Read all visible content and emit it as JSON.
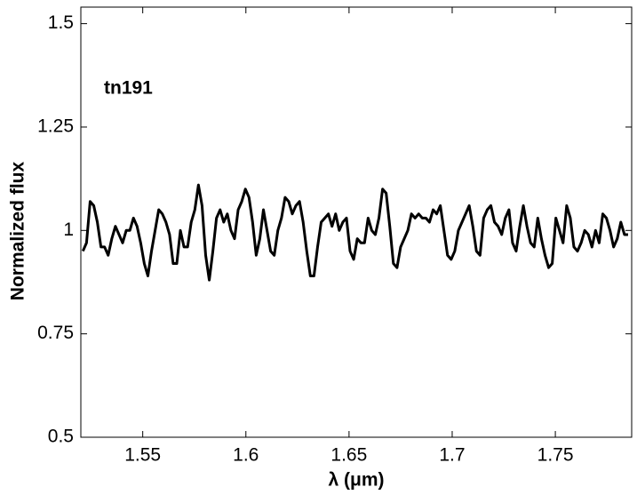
{
  "chart_data": {
    "type": "line",
    "annotation": "tn191",
    "xlabel": "λ (μm)",
    "ylabel": "Normalized flux",
    "xlim": [
      1.52,
      1.787
    ],
    "ylim": [
      0.5,
      1.54
    ],
    "xticks": [
      1.55,
      1.6,
      1.65,
      1.7,
      1.75
    ],
    "yticks": [
      0.5,
      0.75,
      1,
      1.25,
      1.5
    ],
    "grid": false,
    "series": [
      {
        "color": "#000000",
        "x": [
          1.521,
          1.52275,
          1.5245,
          1.52625,
          1.528,
          1.52975,
          1.5315,
          1.53325,
          1.535,
          1.53675,
          1.5385,
          1.54025,
          1.542,
          1.54375,
          1.5455,
          1.54725,
          1.549,
          1.55075,
          1.5525,
          1.55425,
          1.556,
          1.55775,
          1.5595,
          1.56125,
          1.563,
          1.56475,
          1.5665,
          1.56825,
          1.57,
          1.57175,
          1.5735,
          1.57525,
          1.577,
          1.57875,
          1.5805,
          1.58225,
          1.584,
          1.58575,
          1.5875,
          1.58925,
          1.591,
          1.59275,
          1.5945,
          1.59625,
          1.598,
          1.59975,
          1.6015,
          1.60325,
          1.605,
          1.60675,
          1.6085,
          1.61025,
          1.612,
          1.61375,
          1.6155,
          1.61725,
          1.619,
          1.62075,
          1.6225,
          1.62425,
          1.626,
          1.62775,
          1.6295,
          1.63125,
          1.633,
          1.63475,
          1.6365,
          1.63825,
          1.64,
          1.64175,
          1.6435,
          1.64525,
          1.647,
          1.64875,
          1.6505,
          1.65225,
          1.654,
          1.65575,
          1.6575,
          1.65925,
          1.661,
          1.66275,
          1.6645,
          1.66625,
          1.668,
          1.66975,
          1.6715,
          1.67325,
          1.675,
          1.67675,
          1.6785,
          1.68025,
          1.682,
          1.68375,
          1.6855,
          1.68725,
          1.689,
          1.69075,
          1.6925,
          1.69425,
          1.696,
          1.69775,
          1.6995,
          1.70125,
          1.703,
          1.70475,
          1.7065,
          1.70825,
          1.71,
          1.71175,
          1.7135,
          1.71525,
          1.717,
          1.71875,
          1.7205,
          1.72225,
          1.724,
          1.72575,
          1.7275,
          1.72925,
          1.731,
          1.73275,
          1.7345,
          1.73625,
          1.738,
          1.73975,
          1.7415,
          1.74325,
          1.745,
          1.74675,
          1.7485,
          1.75025,
          1.752,
          1.75375,
          1.7555,
          1.75725,
          1.759,
          1.76075,
          1.7625,
          1.76425,
          1.766,
          1.76775,
          1.7695,
          1.77125,
          1.773,
          1.77475,
          1.7765,
          1.77825,
          1.78,
          1.78175,
          1.7835,
          1.78525
        ],
        "values": [
          0.95,
          0.97,
          1.07,
          1.06,
          1.02,
          0.96,
          0.96,
          0.94,
          0.98,
          1.01,
          0.99,
          0.97,
          1.0,
          1.0,
          1.03,
          1.01,
          0.97,
          0.92,
          0.89,
          0.95,
          1.0,
          1.05,
          1.04,
          1.02,
          0.99,
          0.92,
          0.92,
          1.0,
          0.96,
          0.96,
          1.02,
          1.05,
          1.11,
          1.06,
          0.94,
          0.88,
          0.95,
          1.03,
          1.05,
          1.02,
          1.04,
          1.0,
          0.98,
          1.05,
          1.07,
          1.1,
          1.08,
          1.02,
          0.94,
          0.98,
          1.05,
          1.0,
          0.95,
          0.94,
          1.0,
          1.03,
          1.08,
          1.07,
          1.04,
          1.06,
          1.07,
          1.02,
          0.95,
          0.89,
          0.89,
          0.96,
          1.02,
          1.03,
          1.04,
          1.01,
          1.04,
          1.0,
          1.02,
          1.03,
          0.95,
          0.93,
          0.98,
          0.97,
          0.97,
          1.03,
          1.0,
          0.99,
          1.03,
          1.1,
          1.09,
          1.01,
          0.92,
          0.91,
          0.96,
          0.98,
          1.0,
          1.04,
          1.03,
          1.04,
          1.03,
          1.03,
          1.02,
          1.05,
          1.04,
          1.06,
          1.0,
          0.94,
          0.93,
          0.95,
          1.0,
          1.02,
          1.04,
          1.06,
          1.01,
          0.95,
          0.94,
          1.03,
          1.05,
          1.06,
          1.02,
          1.01,
          0.99,
          1.03,
          1.05,
          0.97,
          0.95,
          1.01,
          1.06,
          1.01,
          0.97,
          0.96,
          1.03,
          0.98,
          0.94,
          0.91,
          0.92,
          1.03,
          1.0,
          0.97,
          1.06,
          1.03,
          0.96,
          0.95,
          0.97,
          1.0,
          0.99,
          0.96,
          1.0,
          0.97,
          1.04,
          1.03,
          1.0,
          0.96,
          0.98,
          1.02,
          0.99,
          0.99
        ]
      }
    ]
  }
}
